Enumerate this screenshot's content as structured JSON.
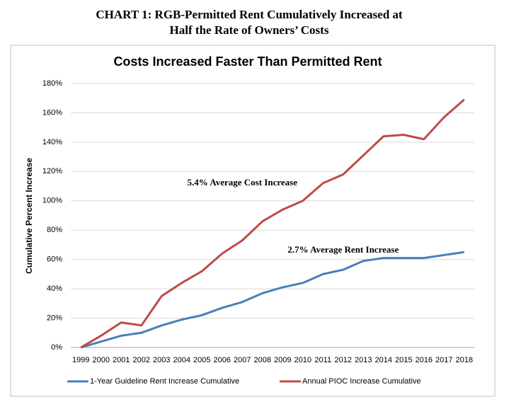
{
  "header": {
    "lines": [
      "CHART 1: RGB-Permitted Rent Cumulatively Increased at",
      "Half the Rate of Owners’ Costs"
    ]
  },
  "chart_data": {
    "type": "line",
    "title": "Costs Increased Faster Than Permitted Rent",
    "y_label": "Cumulative Percent Increase",
    "categories": [
      "1999",
      "2000",
      "2001",
      "2002",
      "2003",
      "2004",
      "2005",
      "2006",
      "2007",
      "2008",
      "2009",
      "2010",
      "2011",
      "2012",
      "2013",
      "2014",
      "2015",
      "2016",
      "2017",
      "2018"
    ],
    "series": [
      {
        "name": "1-Year Guideline Rent Increase Cumulative",
        "color": "#4a7ebb",
        "values": [
          0,
          4,
          8,
          10,
          15,
          19,
          22,
          27,
          31,
          37,
          41,
          44,
          50,
          53,
          59,
          61,
          61,
          61,
          63,
          65
        ]
      },
      {
        "name": "Annual PIOC Increase Cumulative",
        "color": "#be4b48",
        "values": [
          0,
          8,
          17,
          15,
          35,
          44,
          52,
          64,
          73,
          86,
          94,
          100,
          112,
          118,
          131,
          144,
          145,
          142,
          157,
          169
        ]
      }
    ],
    "annotations": [
      {
        "text": "5.4% Average Cost Increase",
        "category": 8,
        "value": 112
      },
      {
        "text": "2.7% Average Rent Increase",
        "category": 13,
        "value": 66
      }
    ],
    "ylim": [
      0,
      180
    ],
    "yticks": [
      {
        "value": 0,
        "label": "0%"
      },
      {
        "value": 20,
        "label": "20%"
      },
      {
        "value": 40,
        "label": "40%"
      },
      {
        "value": 60,
        "label": "60%"
      },
      {
        "value": 80,
        "label": "80%"
      },
      {
        "value": 100,
        "label": "100%"
      },
      {
        "value": 120,
        "label": "120%"
      },
      {
        "value": 140,
        "label": "140%"
      },
      {
        "value": 160,
        "label": "160%"
      },
      {
        "value": 180,
        "label": "180%"
      }
    ],
    "grid": true,
    "legend": "bottom"
  }
}
